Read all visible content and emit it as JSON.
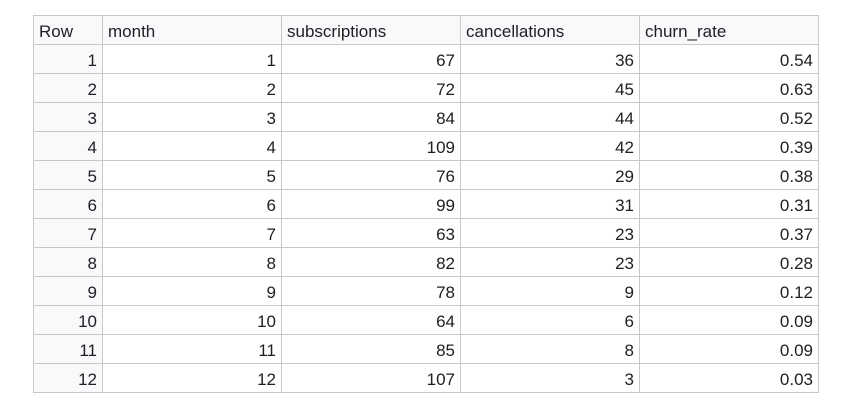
{
  "table": {
    "columns": [
      "Row",
      "month",
      "subscriptions",
      "cancellations",
      "churn_rate"
    ],
    "rows": [
      [
        "1",
        "1",
        "67",
        "36",
        "0.54"
      ],
      [
        "2",
        "2",
        "72",
        "45",
        "0.63"
      ],
      [
        "3",
        "3",
        "84",
        "44",
        "0.52"
      ],
      [
        "4",
        "4",
        "109",
        "42",
        "0.39"
      ],
      [
        "5",
        "5",
        "76",
        "29",
        "0.38"
      ],
      [
        "6",
        "6",
        "99",
        "31",
        "0.31"
      ],
      [
        "7",
        "7",
        "63",
        "23",
        "0.37"
      ],
      [
        "8",
        "8",
        "82",
        "23",
        "0.28"
      ],
      [
        "9",
        "9",
        "78",
        "9",
        "0.12"
      ],
      [
        "10",
        "10",
        "64",
        "6",
        "0.09"
      ],
      [
        "11",
        "11",
        "85",
        "8",
        "0.09"
      ],
      [
        "12",
        "12",
        "107",
        "3",
        "0.03"
      ]
    ]
  }
}
